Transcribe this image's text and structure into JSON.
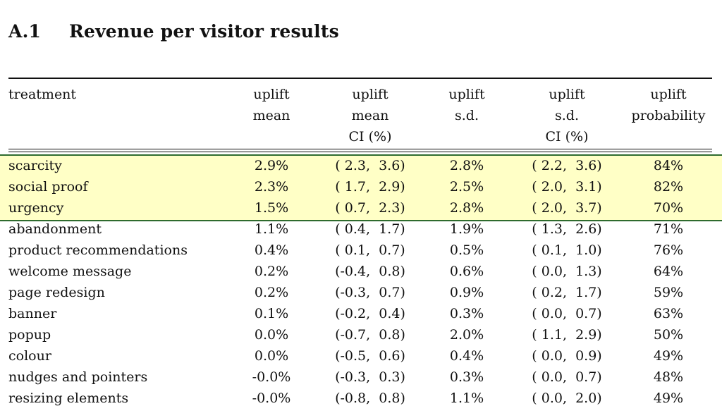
{
  "section": {
    "number": "A.1",
    "title": "Revenue per visitor results"
  },
  "table": {
    "columns": [
      {
        "lines": [
          "treatment"
        ]
      },
      {
        "lines": [
          "uplift",
          "mean"
        ]
      },
      {
        "lines": [
          "uplift",
          "mean",
          "CI (%)"
        ]
      },
      {
        "lines": [
          "uplift",
          "s.d."
        ]
      },
      {
        "lines": [
          "uplift",
          "s.d.",
          "CI (%)"
        ]
      },
      {
        "lines": [
          "uplift",
          "probability"
        ]
      }
    ],
    "rows": [
      {
        "treatment": "scarcity",
        "mean": "2.9%",
        "mean_ci": "( 2.3,  3.6)",
        "sd": "2.8%",
        "sd_ci": "( 2.2,  3.6)",
        "prob": "84%"
      },
      {
        "treatment": "social proof",
        "mean": "2.3%",
        "mean_ci": "( 1.7,  2.9)",
        "sd": "2.5%",
        "sd_ci": "( 2.0,  3.1)",
        "prob": "82%"
      },
      {
        "treatment": "urgency",
        "mean": "1.5%",
        "mean_ci": "( 0.7,  2.3)",
        "sd": "2.8%",
        "sd_ci": "( 2.0,  3.7)",
        "prob": "70%"
      },
      {
        "treatment": "abandonment",
        "mean": "1.1%",
        "mean_ci": "( 0.4,  1.7)",
        "sd": "1.9%",
        "sd_ci": "( 1.3,  2.6)",
        "prob": "71%"
      },
      {
        "treatment": "product recommendations",
        "mean": "0.4%",
        "mean_ci": "( 0.1,  0.7)",
        "sd": "0.5%",
        "sd_ci": "( 0.1,  1.0)",
        "prob": "76%"
      },
      {
        "treatment": "welcome message",
        "mean": "0.2%",
        "mean_ci": "(-0.4,  0.8)",
        "sd": "0.6%",
        "sd_ci": "( 0.0,  1.3)",
        "prob": "64%"
      },
      {
        "treatment": "page redesign",
        "mean": "0.2%",
        "mean_ci": "(-0.3,  0.7)",
        "sd": "0.9%",
        "sd_ci": "( 0.2,  1.7)",
        "prob": "59%"
      },
      {
        "treatment": "banner",
        "mean": "0.1%",
        "mean_ci": "(-0.2,  0.4)",
        "sd": "0.3%",
        "sd_ci": "( 0.0,  0.7)",
        "prob": "63%"
      },
      {
        "treatment": "popup",
        "mean": "0.0%",
        "mean_ci": "(-0.7,  0.8)",
        "sd": "2.0%",
        "sd_ci": "( 1.1,  2.9)",
        "prob": "50%"
      },
      {
        "treatment": "colour",
        "mean": "0.0%",
        "mean_ci": "(-0.5,  0.6)",
        "sd": "0.4%",
        "sd_ci": "( 0.0,  0.9)",
        "prob": "49%"
      },
      {
        "treatment": "nudges and pointers",
        "mean": "-0.0%",
        "mean_ci": "(-0.3,  0.3)",
        "sd": "0.3%",
        "sd_ci": "( 0.0,  0.7)",
        "prob": "48%"
      },
      {
        "treatment": "resizing elements",
        "mean": "-0.0%",
        "mean_ci": "(-0.8,  0.8)",
        "sd": "1.1%",
        "sd_ci": "( 0.0,  2.0)",
        "prob": "49%"
      }
    ],
    "highlighted_rows": [
      "scarcity",
      "social proof",
      "urgency"
    ],
    "colors": {
      "highlight_fill": "#ffffc6",
      "highlight_border": "#2e6b2e",
      "text": "#111111"
    }
  }
}
